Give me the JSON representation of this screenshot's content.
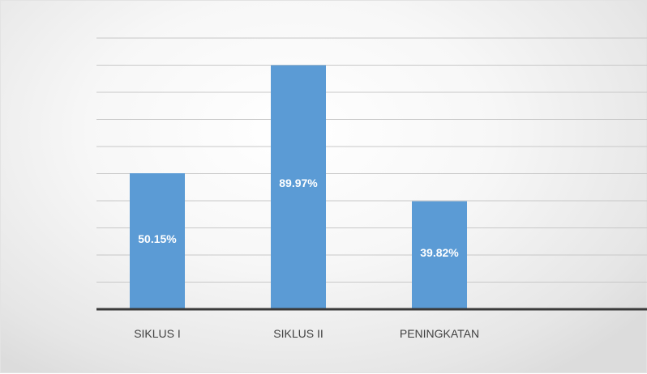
{
  "chart_data": {
    "type": "bar",
    "categories": [
      "SIKLUS I",
      "SIKLUS II",
      "PENINGKATAN"
    ],
    "values": [
      50.15,
      89.97,
      39.82
    ],
    "data_labels": [
      "50.15%",
      "89.97%",
      "39.82%"
    ],
    "title": "",
    "xlabel": "",
    "ylabel": "",
    "ylim": [
      0,
      100
    ],
    "grid": true,
    "legend": "none",
    "bar_color": "#5b9bd5",
    "label_color": "#ffffff"
  }
}
